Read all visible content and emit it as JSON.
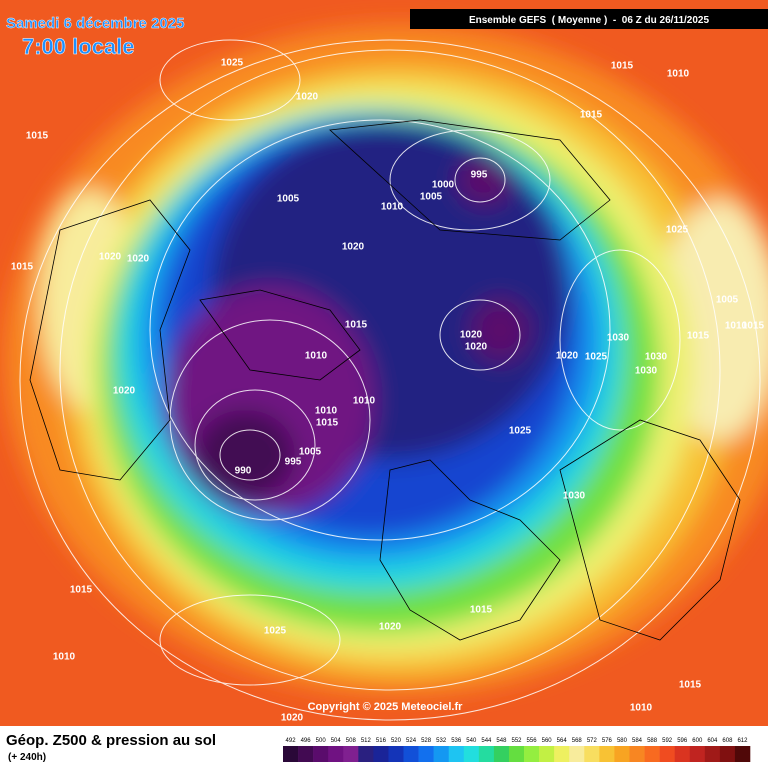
{
  "header": {
    "date": "Samedi 6 décembre 2025",
    "time": "7:00 locale",
    "run": "Ensemble GEFS  ( Moyenne )  -  06 Z du 26/11/2025"
  },
  "map": {
    "isobar_labels": [
      "1025",
      "1020",
      "1015",
      "1015",
      "1010",
      "1015",
      "995",
      "1000",
      "1005",
      "1005",
      "1010",
      "1025",
      "1020",
      "1020",
      "1020",
      "1015",
      "1005",
      "1015",
      "1010",
      "1015",
      "1015",
      "1020",
      "1020",
      "1030",
      "1010",
      "1020",
      "1025",
      "1030",
      "1030",
      "1020",
      "1010",
      "1010",
      "1015",
      "1025",
      "1005",
      "995",
      "990",
      "1030",
      "1015",
      "1015",
      "1020",
      "1025",
      "1010",
      "1015",
      "1010",
      "1020"
    ]
  },
  "copyright": "Copyright © 2025 Meteociel.fr",
  "footer": {
    "title": "Géop. Z500 & pression au sol",
    "lead": "(+ 240h)",
    "colorbar": {
      "labels": [
        492,
        496,
        500,
        504,
        508,
        512,
        516,
        520,
        524,
        528,
        532,
        536,
        540,
        544,
        548,
        552,
        556,
        560,
        564,
        568,
        572,
        576,
        580,
        584,
        588,
        592,
        596,
        600,
        604,
        608,
        612
      ],
      "colors": [
        "#2a0838",
        "#420a52",
        "#5a0c6c",
        "#701282",
        "#802090",
        "#2a2080",
        "#1a2498",
        "#1434b8",
        "#1250d8",
        "#1270ee",
        "#1498f2",
        "#1ec4f2",
        "#22dede",
        "#24dca0",
        "#34d060",
        "#64de40",
        "#94ee40",
        "#c2f044",
        "#eef060",
        "#f8ec9c",
        "#f8de60",
        "#f8c234",
        "#f8a422",
        "#f88622",
        "#f86a20",
        "#f04c20",
        "#da3420",
        "#c02420",
        "#a01a18",
        "#801010",
        "#500808"
      ]
    }
  }
}
